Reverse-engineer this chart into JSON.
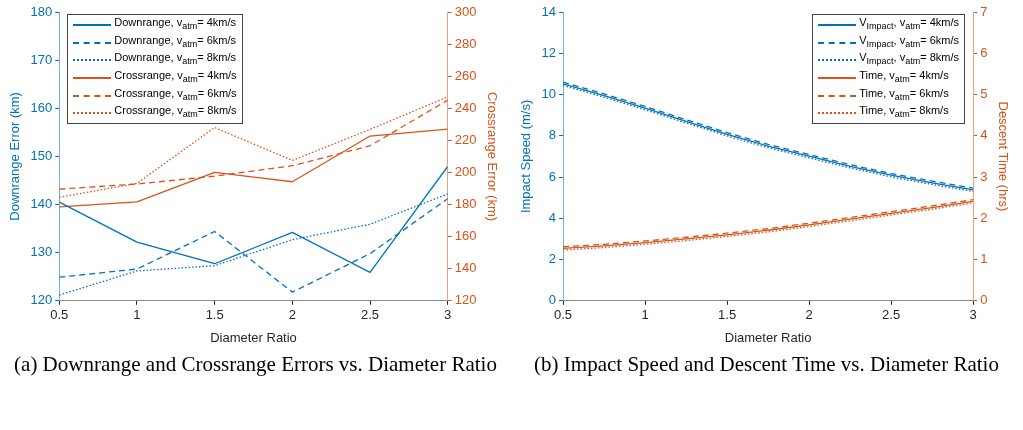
{
  "chart_data": [
    {
      "type": "line",
      "title": "(a) Downrange and Crossrange Errors vs. Diameter Ratio",
      "xlabel": "Diameter Ratio",
      "ylabel": "Downrange Error (km)",
      "y2label": "Crossrange Error (km)",
      "legend": "top left",
      "grid": false,
      "xlim": [
        0.5,
        3
      ],
      "xticks": [
        0.5,
        1,
        1.5,
        2,
        2.5,
        3
      ],
      "ylim": [
        120,
        180
      ],
      "yticks": [
        120,
        130,
        140,
        150,
        160,
        170,
        180
      ],
      "y2lim": [
        120,
        300
      ],
      "y2ticks": [
        120,
        140,
        160,
        180,
        200,
        220,
        240,
        260,
        280,
        300
      ],
      "x": [
        0.5,
        1,
        1.5,
        2,
        2.5,
        3
      ],
      "series": [
        {
          "name": "Downrange, v$_{atm}$= 4km/s",
          "color": "#0072bd",
          "line_style": "solid",
          "values": [
            140.5,
            132.2,
            127.7,
            134.2,
            125.9,
            147.9
          ]
        },
        {
          "name": "Downrange, v$_{atm}$= 6km/s",
          "color": "#0072bd",
          "line_style": "dashed",
          "values": [
            124.9,
            126.6,
            134.4,
            121.8,
            129.8,
            141.2
          ]
        },
        {
          "name": "Downrange, v$_{atm}$= 8km/s",
          "color": "#0072bd",
          "line_style": "dotted",
          "values": [
            121.2,
            126.2,
            127.3,
            132.7,
            135.9,
            142.2
          ]
        },
        {
          "name": "Crossrange, v$_{atm}$= 4km/s",
          "color": "#d95319",
          "line_style": "solid",
          "axis": "y2",
          "values": [
            178.6,
            181.6,
            200.1,
            194.2,
            222.7,
            227.0
          ]
        },
        {
          "name": "Crossrange, v$_{atm}$= 6km/s",
          "color": "#d95319",
          "line_style": "dashed",
          "axis": "y2",
          "values": [
            189.6,
            192.8,
            197.7,
            204.2,
            216.6,
            245.1
          ]
        },
        {
          "name": "Crossrange, v$_{atm}$= 8km/s",
          "color": "#d95319",
          "line_style": "dotted",
          "axis": "y2",
          "values": [
            184.5,
            193.2,
            228,
            207.5,
            226.8,
            247.1
          ]
        }
      ]
    },
    {
      "type": "line",
      "title": "(b) Impact Speed and Descent Time vs. Diameter Ratio",
      "xlabel": "Diameter Ratio",
      "ylabel": "Impact Speed (m/s)",
      "y2label": "Descent Time (hrs)",
      "legend": "top right",
      "grid": false,
      "xlim": [
        0.5,
        3
      ],
      "xticks": [
        0.5,
        1,
        1.5,
        2,
        2.5,
        3
      ],
      "ylim": [
        0,
        14
      ],
      "yticks": [
        0,
        2,
        4,
        6,
        8,
        10,
        12,
        14
      ],
      "y2lim": [
        0,
        7
      ],
      "y2ticks": [
        0,
        1,
        2,
        3,
        4,
        5,
        6,
        7
      ],
      "x": [
        0.5,
        0.75,
        1,
        1.25,
        1.5,
        1.75,
        2,
        2.25,
        2.5,
        2.75,
        3
      ],
      "series": [
        {
          "name": "V$_{Impact}$, v$_{atm}$= 4km/s",
          "color": "#0072bd",
          "line_style": "solid",
          "values": [
            10.52,
            9.95,
            9.34,
            8.7,
            8.07,
            7.5,
            7.01,
            6.52,
            6.09,
            5.72,
            5.38
          ]
        },
        {
          "name": "V$_{Impact}$, v$_{atm}$= 6km/s",
          "color": "#0072bd",
          "line_style": "dashed",
          "values": [
            10.6,
            10.03,
            9.42,
            8.78,
            8.15,
            7.58,
            7.09,
            6.6,
            6.17,
            5.8,
            5.46
          ]
        },
        {
          "name": "V$_{Impact}$, v$_{atm}$= 8km/s",
          "color": "#0072bd",
          "line_style": "dotted",
          "values": [
            10.44,
            9.87,
            9.26,
            8.62,
            7.99,
            7.42,
            6.93,
            6.44,
            6.01,
            5.64,
            5.3
          ]
        },
        {
          "name": "Time, v$_{atm}$= 4km/s",
          "color": "#d95319",
          "line_style": "solid",
          "axis": "y2",
          "values": [
            1.27,
            1.33,
            1.41,
            1.5,
            1.6,
            1.71,
            1.84,
            1.98,
            2.12,
            2.26,
            2.41
          ]
        },
        {
          "name": "Time, v$_{atm}$= 6km/s",
          "color": "#d95319",
          "line_style": "dashed",
          "axis": "y2",
          "values": [
            1.31,
            1.37,
            1.45,
            1.54,
            1.64,
            1.75,
            1.88,
            2.02,
            2.16,
            2.3,
            2.45
          ]
        },
        {
          "name": "Time, v$_{atm}$= 8km/s",
          "color": "#d95319",
          "line_style": "dotted",
          "axis": "y2",
          "values": [
            1.23,
            1.29,
            1.37,
            1.46,
            1.56,
            1.67,
            1.8,
            1.94,
            2.08,
            2.22,
            2.37
          ]
        }
      ]
    }
  ]
}
